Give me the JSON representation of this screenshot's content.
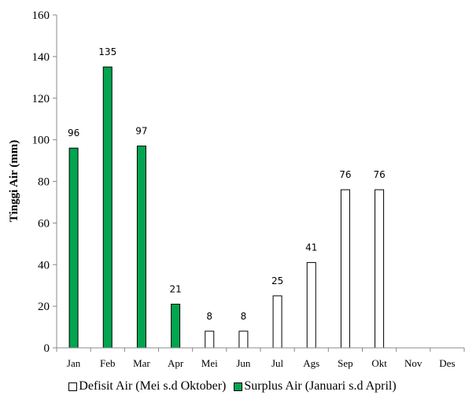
{
  "chart_data": {
    "type": "bar",
    "categories": [
      "Jan",
      "Feb",
      "Mar",
      "Apr",
      "Mei",
      "Jun",
      "Jul",
      "Ags",
      "Sep",
      "Okt",
      "Nov",
      "Des"
    ],
    "ylabel": "Tinggi Air (mm)",
    "xlabel": "",
    "ylim": [
      0,
      160
    ],
    "yticks": [
      0,
      20,
      40,
      60,
      80,
      100,
      120,
      140,
      160
    ],
    "grid": false,
    "legend_position": "bottom",
    "series": [
      {
        "name": "Defisit Air (Mei s.d Oktober)",
        "color": "#ffffff",
        "values": [
          null,
          null,
          null,
          null,
          8,
          8,
          25,
          41,
          76,
          76,
          null,
          null
        ]
      },
      {
        "name": "Surplus Air (Januari s.d April)",
        "color": "#00a550",
        "values": [
          96,
          135,
          97,
          21,
          null,
          null,
          null,
          null,
          null,
          null,
          null,
          null
        ]
      }
    ]
  }
}
